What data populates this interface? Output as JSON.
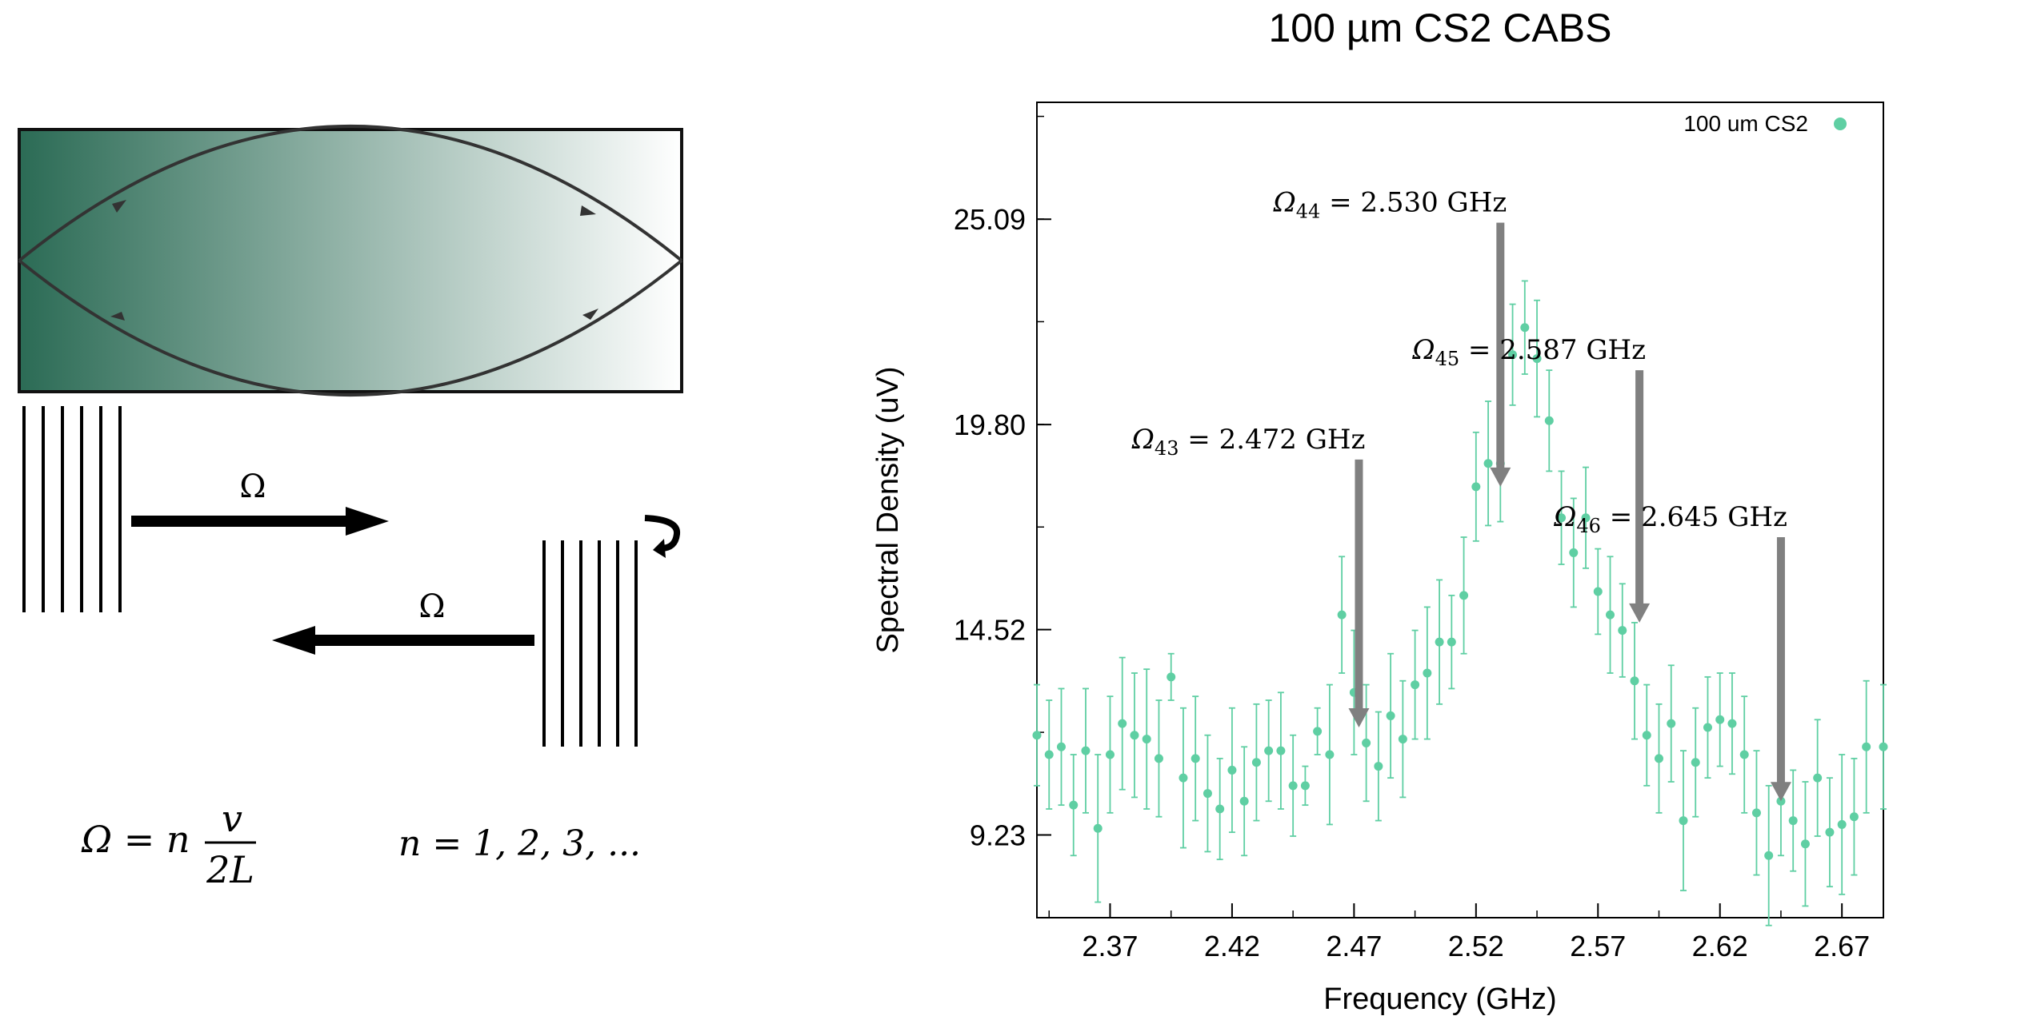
{
  "diagram": {
    "omega_forward": "Ω",
    "omega_backward": "Ω",
    "formula_lhs": "Ω = n",
    "formula_num": "v",
    "formula_den": "2L",
    "n_values": "n = 1, 2, 3, ...",
    "cavity_gradient_dark": "#2b6b55",
    "cavity_gradient_light": "#ffffff"
  },
  "chart_data": {
    "type": "scatter",
    "title": "100 µm CS2 CABS",
    "xlabel": "Frequency (GHz)",
    "ylabel": "Spectral Density (uV)",
    "xlim": [
      2.34,
      2.687
    ],
    "ylim": [
      7.1,
      28.1
    ],
    "x_ticks": [
      2.37,
      2.42,
      2.47,
      2.52,
      2.57,
      2.62,
      2.67
    ],
    "x_tick_labels": [
      "2.37",
      "2.42",
      "2.47",
      "2.52",
      "2.57",
      "2.62",
      "2.67"
    ],
    "y_ticks": [
      9.23,
      14.52,
      19.8,
      25.09
    ],
    "y_tick_labels": [
      "9.23",
      "14.52",
      "19.80",
      "25.09"
    ],
    "grid": false,
    "legend_position": "top-right",
    "color": "#5fcfa3",
    "arrow_color": "#808080",
    "series": [
      {
        "name": "100 um CS2",
        "x": [
          2.34,
          2.345,
          2.35,
          2.355,
          2.36,
          2.365,
          2.37,
          2.375,
          2.38,
          2.385,
          2.39,
          2.395,
          2.4,
          2.405,
          2.41,
          2.415,
          2.42,
          2.425,
          2.43,
          2.435,
          2.44,
          2.445,
          2.45,
          2.455,
          2.46,
          2.465,
          2.47,
          2.475,
          2.48,
          2.485,
          2.49,
          2.495,
          2.5,
          2.505,
          2.51,
          2.515,
          2.52,
          2.525,
          2.53,
          2.535,
          2.54,
          2.545,
          2.55,
          2.555,
          2.56,
          2.565,
          2.57,
          2.575,
          2.58,
          2.585,
          2.59,
          2.595,
          2.6,
          2.605,
          2.61,
          2.615,
          2.62,
          2.625,
          2.63,
          2.635,
          2.64,
          2.645,
          2.65,
          2.655,
          2.66,
          2.665,
          2.67,
          2.675,
          2.68,
          2.687
        ],
        "y": [
          11.8,
          11.3,
          11.5,
          10.0,
          11.4,
          9.4,
          11.3,
          12.1,
          11.8,
          11.7,
          11.2,
          13.3,
          10.7,
          11.2,
          10.3,
          9.9,
          10.9,
          10.1,
          11.1,
          11.4,
          11.4,
          10.5,
          10.5,
          11.9,
          11.3,
          14.9,
          12.9,
          11.6,
          11.0,
          12.3,
          11.7,
          13.1,
          13.4,
          14.2,
          14.2,
          15.4,
          18.2,
          18.8,
          18.8,
          21.6,
          22.3,
          21.5,
          19.9,
          17.4,
          16.5,
          17.4,
          15.5,
          14.9,
          14.5,
          13.2,
          11.8,
          11.2,
          12.1,
          9.6,
          11.1,
          12.0,
          12.2,
          12.1,
          11.3,
          9.8,
          8.7,
          10.1,
          9.6,
          9.0,
          10.7,
          9.3,
          9.5,
          9.7,
          11.5,
          11.5
        ],
        "err": [
          1.3,
          1.4,
          1.5,
          1.3,
          1.6,
          1.9,
          1.5,
          1.7,
          1.6,
          1.8,
          1.5,
          0.6,
          1.8,
          1.6,
          1.5,
          1.3,
          1.6,
          1.4,
          1.5,
          1.3,
          1.5,
          1.3,
          0.5,
          0.6,
          1.8,
          1.5,
          1.6,
          1.5,
          1.4,
          1.6,
          1.5,
          1.4,
          1.7,
          1.6,
          1.2,
          1.5,
          1.4,
          1.6,
          1.5,
          1.3,
          1.2,
          1.5,
          1.3,
          1.2,
          1.4,
          1.3,
          1.1,
          1.5,
          1.2,
          1.5,
          1.3,
          1.4,
          1.5,
          1.8,
          1.4,
          1.3,
          1.2,
          1.3,
          1.5,
          1.6,
          1.8,
          1.4,
          1.3,
          1.6,
          1.5,
          1.4,
          1.8,
          1.5,
          1.7,
          1.6
        ]
      }
    ],
    "annotations": [
      {
        "label": "Ω43 = 2.472 GHz",
        "sym": "Ω",
        "sub": "43",
        "text": " = 2.472 GHz",
        "x": 2.472,
        "y_top": 18.9,
        "y_tip": 12.0
      },
      {
        "label": "Ω44 = 2.530 GHz",
        "sym": "Ω",
        "sub": "44",
        "text": " = 2.530 GHz",
        "x": 2.53,
        "y_top": 25.0,
        "y_tip": 18.2
      },
      {
        "label": "Ω45 = 2.587 GHz",
        "sym": "Ω",
        "sub": "45",
        "text": " = 2.587 GHz",
        "x": 2.587,
        "y_top": 21.2,
        "y_tip": 14.7
      },
      {
        "label": "Ω46 = 2.645 GHz",
        "sym": "Ω",
        "sub": "46",
        "text": " = 2.645 GHz",
        "x": 2.645,
        "y_top": 16.9,
        "y_tip": 10.1
      }
    ]
  }
}
